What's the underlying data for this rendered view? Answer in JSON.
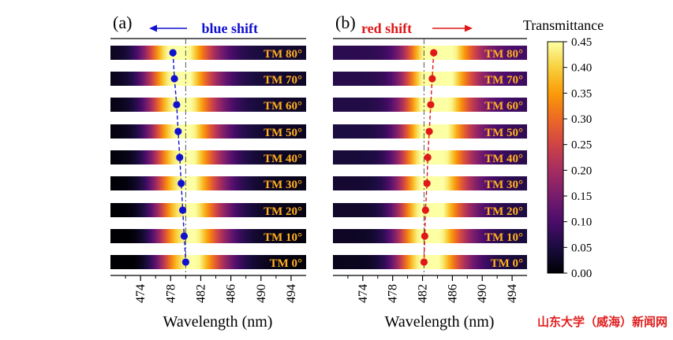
{
  "colors": {
    "blue": "#1010d0",
    "red": "#e01818",
    "label": "#ffb020",
    "watermark": "#e02020",
    "colormap": [
      "#000004",
      "#1b0c41",
      "#4a0c6b",
      "#781c6d",
      "#a52c60",
      "#cf4446",
      "#ed6925",
      "#fb9b06",
      "#f7d13d",
      "#fcffa4"
    ]
  },
  "watermark": "山东大学（威海）新闻网",
  "chart_data": [
    {
      "type": "heatmap",
      "panel_label": "(a)",
      "annotation": "blue shift",
      "arrow_direction": "left",
      "xlabel": "Wavelength (nm)",
      "xlim": [
        470,
        496
      ],
      "xticks": [
        "474",
        "478",
        "482",
        "486",
        "490",
        "494"
      ],
      "reference_line": 480,
      "row_labels": [
        "TM 80°",
        "TM 70°",
        "TM 60°",
        "TM 50°",
        "TM 40°",
        "TM 30°",
        "TM 20°",
        "TM 10°",
        "TM 0°"
      ],
      "peak_wavelengths": [
        478.3,
        478.5,
        478.8,
        479.0,
        479.2,
        479.4,
        479.6,
        479.8,
        480.0
      ],
      "series_color": "blue"
    },
    {
      "type": "heatmap",
      "panel_label": "(b)",
      "annotation": "red shift",
      "arrow_direction": "right",
      "xlabel": "Wavelength (nm)",
      "xlim": [
        470,
        496
      ],
      "xticks": [
        "474",
        "478",
        "482",
        "486",
        "490",
        "494"
      ],
      "reference_line": 482.2,
      "row_labels": [
        "TM 80°",
        "TM 70°",
        "TM 60°",
        "TM 50°",
        "TM 40°",
        "TM 30°",
        "TM 20°",
        "TM 10°",
        "TM 0°"
      ],
      "peak_wavelengths": [
        483.5,
        483.3,
        483.1,
        482.9,
        482.7,
        482.6,
        482.4,
        482.3,
        482.2
      ],
      "series_color": "red"
    }
  ],
  "colorbar": {
    "title": "Transmittance",
    "range": [
      0,
      0.45
    ],
    "ticks": [
      "0.00",
      "0.05",
      "0.10",
      "0.15",
      "0.20",
      "0.25",
      "0.30",
      "0.35",
      "0.40",
      "0.45"
    ]
  }
}
